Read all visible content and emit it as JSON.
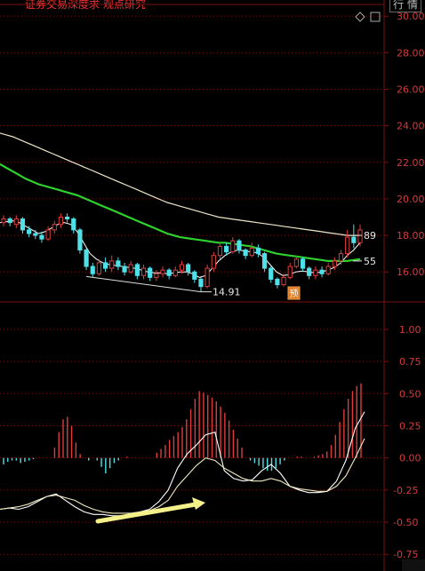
{
  "header": {
    "title": "证券交易深度求 观点研究",
    "button_label": "行 情"
  },
  "icons": {
    "diamond": "diamond-icon",
    "square": "square-icon"
  },
  "colors": {
    "up": "#e03c3c",
    "down": "#4fe0e8",
    "ma_slow": "#f0e6c8",
    "ma_mid": "#2fd12f",
    "ma_fast": "#ffffff",
    "grid": "#7a1010",
    "axis_text": "#d23c3c",
    "arrow": "#f4f08a"
  },
  "chart_data": [
    {
      "type": "candlestick",
      "title": "",
      "ylim": [
        14.6,
        30.4
      ],
      "yticks": [
        "16.00",
        "18.00",
        "20.00",
        "22.00",
        "24.00",
        "26.00",
        "28.00",
        "30.00"
      ],
      "annotations": {
        "low_label": "14.91",
        "ma_label_1": "89",
        "ma_label_2": "55",
        "marker_text": "预"
      },
      "candles": [
        {
          "o": 18.7,
          "c": 18.9,
          "h": 19.1,
          "l": 18.5
        },
        {
          "o": 18.9,
          "c": 18.7,
          "h": 19.0,
          "l": 18.5
        },
        {
          "o": 18.6,
          "c": 18.9,
          "h": 19.1,
          "l": 18.4
        },
        {
          "o": 18.9,
          "c": 18.3,
          "h": 19.0,
          "l": 18.1
        },
        {
          "o": 18.3,
          "c": 18.1,
          "h": 18.5,
          "l": 17.9
        },
        {
          "o": 18.1,
          "c": 18.0,
          "h": 18.3,
          "l": 17.8
        },
        {
          "o": 18.0,
          "c": 17.8,
          "h": 18.2,
          "l": 17.6
        },
        {
          "o": 17.8,
          "c": 18.3,
          "h": 18.5,
          "l": 17.7
        },
        {
          "o": 18.3,
          "c": 18.6,
          "h": 18.8,
          "l": 18.1
        },
        {
          "o": 18.6,
          "c": 19.0,
          "h": 19.2,
          "l": 18.4
        },
        {
          "o": 19.0,
          "c": 18.9,
          "h": 19.2,
          "l": 18.7
        },
        {
          "o": 18.9,
          "c": 18.3,
          "h": 19.0,
          "l": 18.1
        },
        {
          "o": 18.3,
          "c": 17.2,
          "h": 18.4,
          "l": 17.0
        },
        {
          "o": 17.2,
          "c": 16.3,
          "h": 17.3,
          "l": 16.1
        },
        {
          "o": 16.3,
          "c": 15.9,
          "h": 16.5,
          "l": 15.7
        },
        {
          "o": 15.9,
          "c": 16.5,
          "h": 16.7,
          "l": 15.8
        },
        {
          "o": 16.5,
          "c": 16.2,
          "h": 16.8,
          "l": 16.0
        },
        {
          "o": 16.2,
          "c": 16.6,
          "h": 16.9,
          "l": 16.0
        },
        {
          "o": 16.6,
          "c": 16.3,
          "h": 16.8,
          "l": 16.1
        },
        {
          "o": 16.3,
          "c": 16.0,
          "h": 16.5,
          "l": 15.8
        },
        {
          "o": 16.0,
          "c": 16.4,
          "h": 16.6,
          "l": 15.9
        },
        {
          "o": 16.4,
          "c": 15.8,
          "h": 16.5,
          "l": 15.6
        },
        {
          "o": 15.8,
          "c": 16.2,
          "h": 16.4,
          "l": 15.6
        },
        {
          "o": 16.2,
          "c": 15.7,
          "h": 16.3,
          "l": 15.5
        },
        {
          "o": 15.7,
          "c": 15.9,
          "h": 16.1,
          "l": 15.5
        },
        {
          "o": 15.9,
          "c": 16.1,
          "h": 16.3,
          "l": 15.7
        },
        {
          "o": 16.1,
          "c": 15.8,
          "h": 16.2,
          "l": 15.6
        },
        {
          "o": 15.8,
          "c": 16.1,
          "h": 16.3,
          "l": 15.7
        },
        {
          "o": 16.1,
          "c": 16.4,
          "h": 16.6,
          "l": 15.9
        },
        {
          "o": 16.4,
          "c": 16.0,
          "h": 16.5,
          "l": 15.8
        },
        {
          "o": 16.0,
          "c": 15.6,
          "h": 16.1,
          "l": 15.4
        },
        {
          "o": 15.6,
          "c": 15.2,
          "h": 15.7,
          "l": 14.91
        },
        {
          "o": 15.2,
          "c": 16.2,
          "h": 16.4,
          "l": 15.1
        },
        {
          "o": 16.2,
          "c": 16.9,
          "h": 17.1,
          "l": 16.0
        },
        {
          "o": 16.9,
          "c": 17.4,
          "h": 17.6,
          "l": 16.7
        },
        {
          "o": 17.4,
          "c": 17.1,
          "h": 17.6,
          "l": 16.9
        },
        {
          "o": 17.1,
          "c": 17.7,
          "h": 17.9,
          "l": 17.0
        },
        {
          "o": 17.7,
          "c": 17.2,
          "h": 17.8,
          "l": 17.0
        },
        {
          "o": 17.2,
          "c": 16.9,
          "h": 17.3,
          "l": 16.7
        },
        {
          "o": 16.9,
          "c": 17.3,
          "h": 17.6,
          "l": 16.8
        },
        {
          "o": 17.3,
          "c": 17.0,
          "h": 17.5,
          "l": 16.8
        },
        {
          "o": 17.0,
          "c": 16.2,
          "h": 17.1,
          "l": 16.0
        },
        {
          "o": 16.2,
          "c": 15.6,
          "h": 16.3,
          "l": 15.4
        },
        {
          "o": 15.6,
          "c": 15.3,
          "h": 15.7,
          "l": 15.1
        },
        {
          "o": 15.3,
          "c": 15.7,
          "h": 15.9,
          "l": 15.2
        },
        {
          "o": 15.7,
          "c": 16.3,
          "h": 16.5,
          "l": 15.6
        },
        {
          "o": 16.3,
          "c": 16.7,
          "h": 16.9,
          "l": 16.2
        },
        {
          "o": 16.7,
          "c": 16.2,
          "h": 16.8,
          "l": 16.0
        },
        {
          "o": 16.2,
          "c": 15.8,
          "h": 16.3,
          "l": 15.6
        },
        {
          "o": 15.8,
          "c": 16.1,
          "h": 16.3,
          "l": 15.6
        },
        {
          "o": 16.1,
          "c": 15.9,
          "h": 16.3,
          "l": 15.7
        },
        {
          "o": 15.9,
          "c": 16.3,
          "h": 16.5,
          "l": 15.8
        },
        {
          "o": 16.3,
          "c": 16.6,
          "h": 16.8,
          "l": 16.1
        },
        {
          "o": 16.6,
          "c": 17.0,
          "h": 17.2,
          "l": 16.4
        },
        {
          "o": 17.0,
          "c": 17.9,
          "h": 18.3,
          "l": 16.8
        },
        {
          "o": 17.9,
          "c": 17.6,
          "h": 18.6,
          "l": 17.3
        },
        {
          "o": 17.6,
          "c": 18.3,
          "h": 18.6,
          "l": 17.4
        }
      ],
      "series": [
        {
          "values": [
            23.6,
            23.5,
            23.4,
            23.25,
            23.1,
            22.95,
            22.8,
            22.65,
            22.5,
            22.35,
            22.2,
            22.05,
            21.9,
            21.75,
            21.6,
            21.45,
            21.3,
            21.15,
            21.0,
            20.85,
            20.7,
            20.55,
            20.4,
            20.25,
            20.1,
            19.95,
            19.8,
            19.7,
            19.6,
            19.5,
            19.4,
            19.3,
            19.2,
            19.1,
            19.0,
            18.95,
            18.9,
            18.85,
            18.8,
            18.75,
            18.7,
            18.65,
            18.6,
            18.55,
            18.5,
            18.45,
            18.4,
            18.35,
            18.3,
            18.25,
            18.2,
            18.15,
            18.1,
            18.05,
            18.0,
            18.0,
            18.0
          ]
        },
        {
          "values": [
            21.9,
            21.7,
            21.5,
            21.3,
            21.1,
            20.95,
            20.8,
            20.7,
            20.6,
            20.5,
            20.4,
            20.3,
            20.2,
            20.05,
            19.9,
            19.75,
            19.6,
            19.45,
            19.3,
            19.15,
            19.0,
            18.85,
            18.7,
            18.55,
            18.4,
            18.25,
            18.1,
            18.0,
            17.9,
            17.85,
            17.8,
            17.75,
            17.7,
            17.65,
            17.6,
            17.6,
            17.55,
            17.5,
            17.45,
            17.4,
            17.3,
            17.2,
            17.1,
            17.0,
            16.95,
            16.9,
            16.85,
            16.8,
            16.75,
            16.7,
            16.65,
            16.6,
            16.6,
            16.6,
            16.6,
            16.65,
            16.7
          ]
        },
        {
          "values": [
            18.7,
            18.75,
            18.8,
            18.7,
            18.5,
            18.3,
            18.1,
            18.2,
            18.4,
            18.6,
            18.7,
            18.6,
            18.2,
            17.6,
            17.0,
            16.7,
            16.5,
            16.4,
            16.35,
            16.3,
            16.25,
            16.2,
            16.1,
            16.0,
            15.95,
            15.95,
            15.9,
            15.95,
            16.0,
            16.0,
            15.9,
            15.7,
            15.8,
            16.2,
            16.6,
            16.9,
            17.1,
            17.2,
            17.15,
            17.1,
            17.05,
            16.8,
            16.4,
            16.0,
            15.8,
            15.85,
            16.0,
            16.05,
            16.0,
            15.95,
            16.0,
            16.1,
            16.25,
            16.5,
            16.9,
            17.2,
            17.6
          ]
        }
      ]
    },
    {
      "type": "bar",
      "title": "",
      "ylim": [
        -0.88,
        1.2
      ],
      "yticks": [
        "1.00",
        "0.75",
        "0.50",
        "0.25",
        "0.00",
        "-0.25",
        "-0.50",
        "-0.75"
      ],
      "values": [
        -0.05,
        -0.03,
        -0.02,
        -0.02,
        -0.04,
        -0.03,
        -0.02,
        -0.01,
        0.0,
        0.0,
        0.0,
        0.0,
        0.08,
        0.2,
        0.3,
        0.32,
        0.25,
        0.12,
        0.03,
        0.0,
        -0.02,
        0.0,
        -0.02,
        -0.07,
        -0.12,
        -0.08,
        -0.04,
        -0.02,
        0.0,
        0.01,
        0.0,
        0.0,
        0.0,
        0.0,
        0.0,
        0.0,
        0.04,
        0.07,
        0.1,
        0.14,
        0.17,
        0.2,
        0.24,
        0.3,
        0.38,
        0.46,
        0.52,
        0.51,
        0.49,
        0.47,
        0.44,
        0.4,
        0.35,
        0.29,
        0.22,
        0.15,
        0.08,
        0.0,
        -0.02,
        -0.04,
        -0.06,
        -0.08,
        -0.1,
        -0.1,
        -0.08,
        -0.05,
        -0.02,
        0.0,
        0.0,
        0.01,
        0.01,
        0.0,
        0.0,
        0.01,
        0.02,
        0.03,
        0.05,
        0.1,
        0.18,
        0.28,
        0.38,
        0.46,
        0.52,
        0.56,
        0.58
      ],
      "series": [
        {
          "values": [
            -0.4,
            -0.39,
            -0.4,
            -0.38,
            -0.34,
            -0.3,
            -0.28,
            -0.33,
            -0.38,
            -0.42,
            -0.44,
            -0.44,
            -0.45,
            -0.45,
            -0.44,
            -0.42,
            -0.4,
            -0.34,
            -0.25,
            -0.08,
            0.03,
            0.1,
            0.18,
            0.2,
            -0.1,
            -0.16,
            -0.18,
            -0.17,
            -0.1,
            -0.05,
            -0.12,
            -0.22,
            -0.25,
            -0.27,
            -0.27,
            -0.26,
            -0.18,
            -0.02,
            0.23,
            0.36
          ]
        },
        {
          "values": [
            -0.4,
            -0.39,
            -0.38,
            -0.36,
            -0.33,
            -0.3,
            -0.29,
            -0.31,
            -0.33,
            -0.37,
            -0.4,
            -0.42,
            -0.43,
            -0.43,
            -0.43,
            -0.42,
            -0.41,
            -0.38,
            -0.33,
            -0.22,
            -0.14,
            -0.06,
            0.0,
            -0.02,
            -0.08,
            -0.12,
            -0.16,
            -0.18,
            -0.18,
            -0.16,
            -0.18,
            -0.22,
            -0.24,
            -0.25,
            -0.26,
            -0.26,
            -0.22,
            -0.14,
            0.0,
            0.15
          ]
        }
      ]
    }
  ]
}
